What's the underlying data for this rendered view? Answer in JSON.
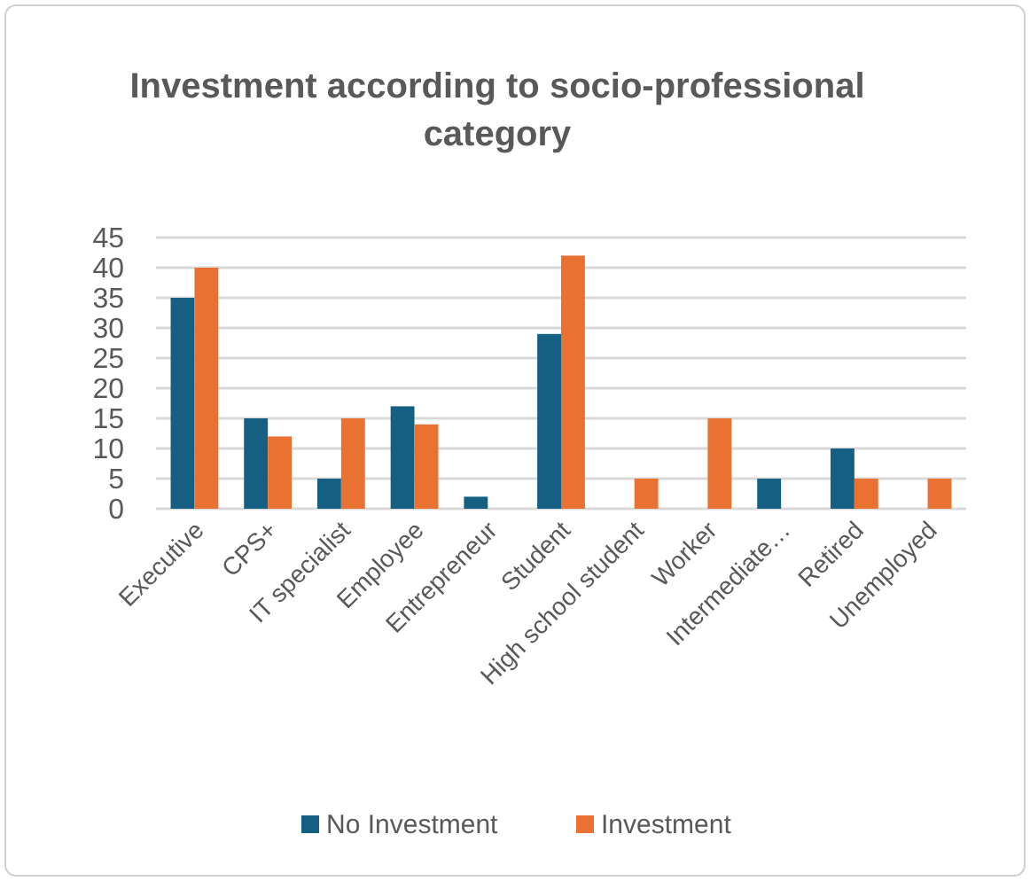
{
  "chart_data": {
    "type": "bar",
    "title": "Investment according to socio-professional category",
    "categories": [
      "Executive",
      "CPS+",
      "IT specialist",
      "Employee",
      "Entrepreneur",
      "Student",
      "High school student",
      "Worker",
      "Intermediate…",
      "Retired",
      "Unemployed"
    ],
    "series": [
      {
        "name": "No Investment",
        "color": "#156082",
        "values": [
          35,
          15,
          5,
          17,
          2,
          29,
          0,
          0,
          5,
          10,
          0
        ]
      },
      {
        "name": "Investment",
        "color": "#e97132",
        "values": [
          40,
          12,
          15,
          14,
          0,
          42,
          5,
          15,
          0,
          5,
          5
        ]
      }
    ],
    "ylim": [
      0,
      45
    ],
    "yticks": [
      0,
      5,
      10,
      15,
      20,
      25,
      30,
      35,
      40,
      45
    ],
    "grid": "y",
    "legend": "bottom"
  }
}
